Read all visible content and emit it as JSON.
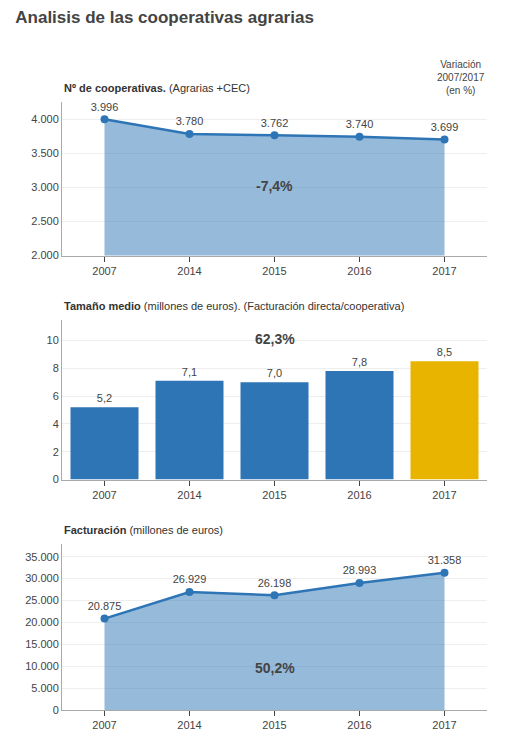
{
  "title": "Analisis de las cooperativas agrarias",
  "chart_data": [
    {
      "type": "line",
      "title": "Nº de cooperativas.",
      "subtitle": " (Agrarias +CEC)",
      "categories": [
        "2007",
        "2014",
        "2015",
        "2016",
        "2017"
      ],
      "values": [
        3996,
        3780,
        3762,
        3740,
        3699
      ],
      "value_labels": [
        "3.996",
        "3.780",
        "3.762",
        "3.740",
        "3.699"
      ],
      "data_labels": true,
      "color": "#2e75b6",
      "marker": "circle",
      "ylim": [
        2000,
        4250
      ],
      "yticks": [
        {
          "value": 2000,
          "label": "2.000"
        },
        {
          "value": 2500,
          "label": "2.500"
        },
        {
          "value": 3000,
          "label": "3.000"
        },
        {
          "value": 3500,
          "label": "3.500"
        },
        {
          "value": 4000,
          "label": "4.000"
        }
      ],
      "grid": true,
      "annotations": [
        "-7,4%",
        "Variación\n2007/2017\n(en %)"
      ]
    },
    {
      "type": "bar",
      "title": "Tamaño medio",
      "subtitle": " (millones de euros). (Facturación directa/cooperativa)",
      "categories": [
        "2007",
        "2014",
        "2015",
        "2016",
        "2017"
      ],
      "values": [
        5.2,
        7.1,
        7.0,
        7.8,
        8.5
      ],
      "value_labels": [
        "5,2",
        "7,1",
        "7,0",
        "7,8",
        "8,5"
      ],
      "data_labels": true,
      "colors": [
        "#2e75b6",
        "#2e75b6",
        "#2e75b6",
        "#2e75b6",
        "#e8b400"
      ],
      "ylim": [
        0,
        11.5
      ],
      "yticks": [
        0,
        2,
        4,
        6,
        8,
        10
      ],
      "grid": true,
      "annotations": [
        "62,3%"
      ]
    },
    {
      "type": "line",
      "title": "Facturación",
      "subtitle": " (millones de euros)",
      "categories": [
        "2007",
        "2014",
        "2015",
        "2016",
        "2017"
      ],
      "values": [
        20875,
        26929,
        26198,
        28993,
        31358
      ],
      "value_labels": [
        "20.875",
        "26.929",
        "26.198",
        "28.993",
        "31.358"
      ],
      "data_labels": true,
      "color": "#2e75b6",
      "marker": "circle",
      "ylim": [
        0,
        38000
      ],
      "yticks": [
        0,
        {
          "value": 5000,
          "label": "5.000"
        },
        {
          "value": 10000,
          "label": "10.000"
        },
        {
          "value": 15000,
          "label": "15.000"
        },
        {
          "value": 20000,
          "label": "20.000"
        },
        {
          "value": 25000,
          "label": "25.000"
        },
        {
          "value": 30000,
          "label": "30.000"
        },
        {
          "value": 35000,
          "label": "35.000"
        }
      ],
      "grid": true,
      "annotations": [
        "50,2%"
      ]
    }
  ]
}
